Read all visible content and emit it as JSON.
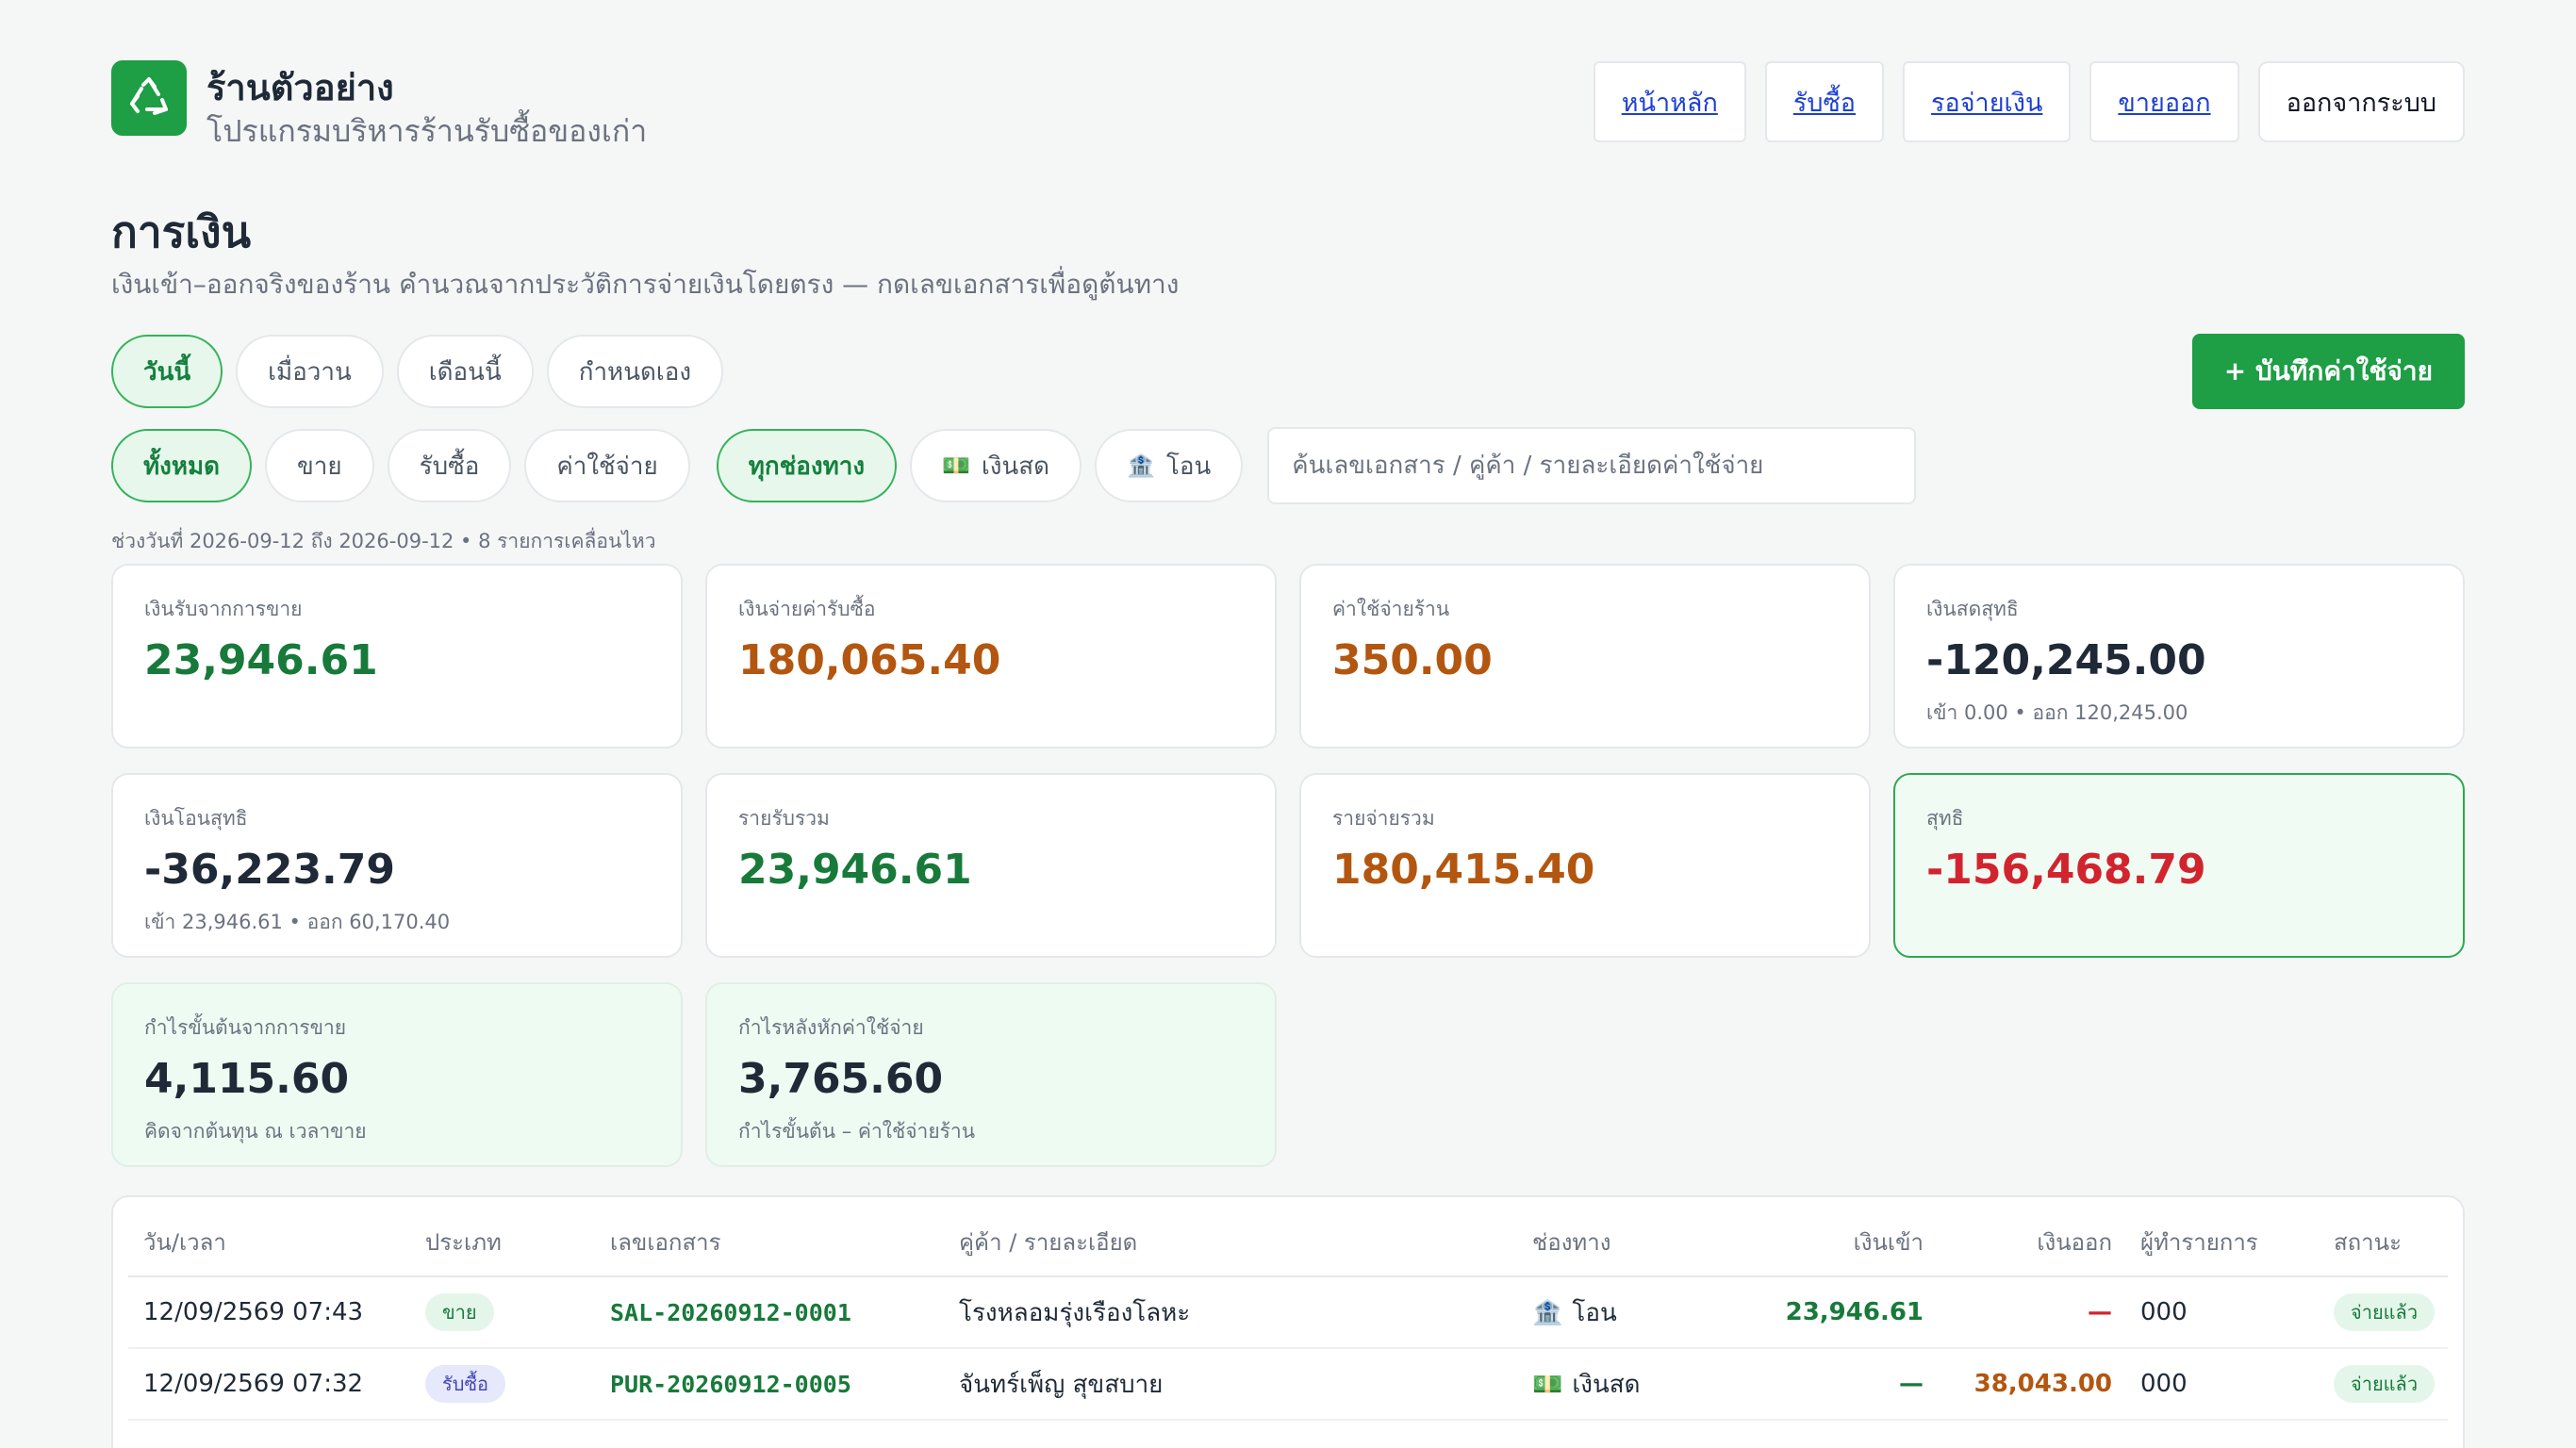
{
  "brand": {
    "name": "ร้านตัวอย่าง",
    "subtitle": "โปรแกรมบริหารร้านรับซื้อของเก่า",
    "logo_icon": "recycle-icon",
    "accent": "#1e9e45"
  },
  "nav": {
    "home": "หน้าหลัก",
    "purchase": "รับซื้อ",
    "pending": "รอจ่ายเงิน",
    "sell": "ขายออก",
    "logout": "ออกจากระบบ"
  },
  "page": {
    "title": "การเงิน",
    "description": "เงินเข้า–ออกจริงของร้าน คำนวณจากประวัติการจ่ายเงินโดยตรง — กดเลขเอกสารเพื่อดูต้นทาง"
  },
  "date_filters": [
    "วันนี้",
    "เมื่อวาน",
    "เดือนนี้",
    "กำหนดเอง"
  ],
  "add_expense_label": "+ บันทึกค่าใช้จ่าย",
  "type_filters": [
    "ทั้งหมด",
    "ขาย",
    "รับซื้อ",
    "ค่าใช้จ่าย"
  ],
  "channel_filters": {
    "all": "ทุกช่องทาง",
    "cash": "เงินสด",
    "transfer": "โอน"
  },
  "search_placeholder": "ค้นเลขเอกสาร / คู่ค้า / รายละเอียดค่าใช้จ่าย",
  "range_note": "ช่วงวันที่ 2026-09-12 ถึง 2026-09-12 • 8 รายการเคลื่อนไหว",
  "cards": {
    "sales_income": {
      "label": "เงินรับจากการขาย",
      "value": "23,946.61"
    },
    "purchase_paid": {
      "label": "เงินจ่ายค่ารับซื้อ",
      "value": "180,065.40"
    },
    "shop_expense": {
      "label": "ค่าใช้จ่ายร้าน",
      "value": "350.00"
    },
    "net_cash": {
      "label": "เงินสดสุทธิ",
      "value": "-120,245.00",
      "sub": "เข้า 0.00 • ออก 120,245.00"
    },
    "net_transfer": {
      "label": "เงินโอนสุทธิ",
      "value": "-36,223.79",
      "sub": "เข้า 23,946.61 • ออก 60,170.40"
    },
    "total_income": {
      "label": "รายรับรวม",
      "value": "23,946.61"
    },
    "total_expense": {
      "label": "รายจ่ายรวม",
      "value": "180,415.40"
    },
    "net": {
      "label": "สุทธิ",
      "value": "-156,468.79"
    },
    "gross_profit": {
      "label": "กำไรขั้นต้นจากการขาย",
      "value": "4,115.60",
      "sub": "คิดจากต้นทุน ณ เวลาขาย"
    },
    "profit_after_expense": {
      "label": "กำไรหลังหักค่าใช้จ่าย",
      "value": "3,765.60",
      "sub": "กำไรขั้นต้น – ค่าใช้จ่ายร้าน"
    }
  },
  "table": {
    "headers": {
      "datetime": "วัน/เวลา",
      "type": "ประเภท",
      "doc": "เลขเอกสาร",
      "party": "คู่ค้า / รายละเอียด",
      "channel": "ช่องทาง",
      "in": "เงินเข้า",
      "out": "เงินออก",
      "by": "ผู้ทำรายการ",
      "status": "สถานะ"
    },
    "rows": [
      {
        "datetime": "12/09/2569 07:43",
        "type": "ขาย",
        "doc": "SAL-20260912-0001",
        "party": "โรงหลอมรุ่งเรืองโลหะ",
        "channel": "โอน",
        "in": "23,946.61",
        "out": "—",
        "by": "000",
        "status": "จ่ายแล้ว"
      },
      {
        "datetime": "12/09/2569 07:32",
        "type": "รับซื้อ",
        "doc": "PUR-20260912-0005",
        "party": "จันทร์เพ็ญ สุขสบาย",
        "channel": "เงินสด",
        "in": "—",
        "out": "38,043.00",
        "by": "000",
        "status": "จ่ายแล้ว"
      }
    ]
  }
}
